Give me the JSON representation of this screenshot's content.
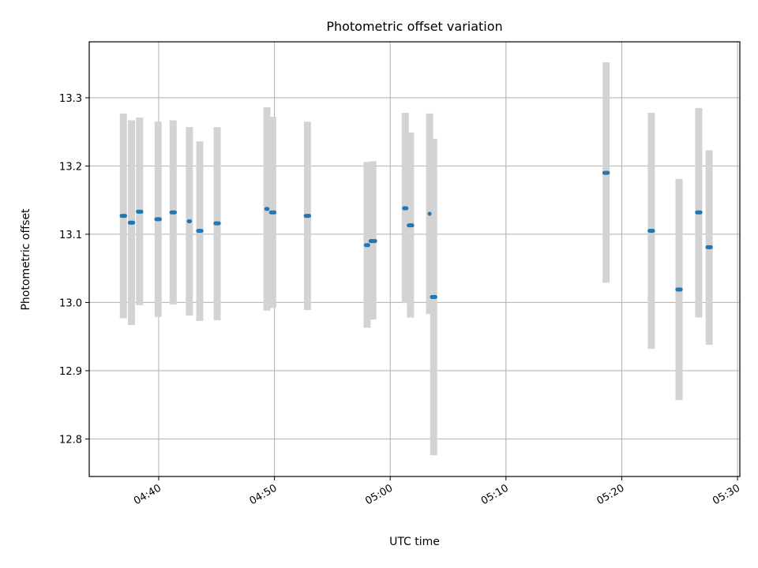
{
  "chart_data": {
    "type": "scatter",
    "title": "Photometric offset variation",
    "xlabel": "UTC time",
    "ylabel": "Photometric offset",
    "xlim": [
      "04:34",
      "05:30.2"
    ],
    "ylim": [
      12.745,
      13.382
    ],
    "xticks": [
      "04:40",
      "04:50",
      "05:00",
      "05:10",
      "05:20",
      "05:30"
    ],
    "yticks": [
      12.8,
      12.9,
      13.0,
      13.1,
      13.2,
      13.3
    ],
    "grid": true,
    "colors": {
      "points": "#1f77b4",
      "errorbars": "#d3d3d3",
      "grid": "#b0b0b0"
    },
    "series": [
      {
        "points": [
          {
            "t": "04:36.8",
            "t_end": "04:37.1",
            "y": 13.127,
            "ylo": 12.977,
            "yhi": 13.277
          },
          {
            "t": "04:37.5",
            "t_end": "04:37.8",
            "y": 13.117,
            "ylo": 12.967,
            "yhi": 13.267
          },
          {
            "t": "04:38.2",
            "t_end": "04:38.5",
            "y": 13.133,
            "ylo": 12.996,
            "yhi": 13.271
          },
          {
            "t": "04:39.8",
            "t_end": "04:40.1",
            "y": 13.122,
            "ylo": 12.979,
            "yhi": 13.265
          },
          {
            "t": "04:41.1",
            "t_end": "04:41.4",
            "y": 13.132,
            "ylo": 12.997,
            "yhi": 13.267
          },
          {
            "t": "04:42.6",
            "t_end": "04:42.7",
            "y": 13.119,
            "ylo": 12.981,
            "yhi": 13.257
          },
          {
            "t": "04:43.4",
            "t_end": "04:43.7",
            "y": 13.105,
            "ylo": 12.973,
            "yhi": 13.236
          },
          {
            "t": "04:44.9",
            "t_end": "04:45.2",
            "y": 13.116,
            "ylo": 12.974,
            "yhi": 13.257
          },
          {
            "t": "04:49.3",
            "t_end": "04:49.4",
            "y": 13.137,
            "ylo": 12.988,
            "yhi": 13.286
          },
          {
            "t": "04:49.7",
            "t_end": "04:50.0",
            "y": 13.132,
            "ylo": 12.992,
            "yhi": 13.272
          },
          {
            "t": "04:52.7",
            "t_end": "04:53.0",
            "y": 13.127,
            "ylo": 12.989,
            "yhi": 13.265
          },
          {
            "t": "04:57.9",
            "t_end": "04:58.1",
            "y": 13.084,
            "ylo": 12.963,
            "yhi": 13.206
          },
          {
            "t": "04:58.3",
            "t_end": "04:58.7",
            "y": 13.09,
            "ylo": 12.975,
            "yhi": 13.207
          },
          {
            "t": "05:01.2",
            "t_end": "05:01.4",
            "y": 13.138,
            "ylo": 12.999,
            "yhi": 13.278
          },
          {
            "t": "05:01.6",
            "t_end": "05:01.9",
            "y": 13.113,
            "ylo": 12.978,
            "yhi": 13.249
          },
          {
            "t": "05:03.4",
            "t_end": "05:03.4",
            "y": 13.13,
            "ylo": 12.983,
            "yhi": 13.277
          },
          {
            "t": "05:03.6",
            "t_end": "05:03.9",
            "y": 13.008,
            "ylo": 12.776,
            "yhi": 13.24
          },
          {
            "t": "05:18.5",
            "t_end": "05:18.8",
            "y": 13.19,
            "ylo": 13.029,
            "yhi": 13.352
          },
          {
            "t": "05:22.4",
            "t_end": "05:22.7",
            "y": 13.105,
            "ylo": 12.932,
            "yhi": 13.278
          },
          {
            "t": "05:24.8",
            "t_end": "05:25.1",
            "y": 13.019,
            "ylo": 12.857,
            "yhi": 13.181
          },
          {
            "t": "05:26.5",
            "t_end": "05:26.8",
            "y": 13.132,
            "ylo": 12.978,
            "yhi": 13.285
          },
          {
            "t": "05:27.4",
            "t_end": "05:27.7",
            "y": 13.081,
            "ylo": 12.938,
            "yhi": 13.223
          }
        ]
      }
    ]
  }
}
